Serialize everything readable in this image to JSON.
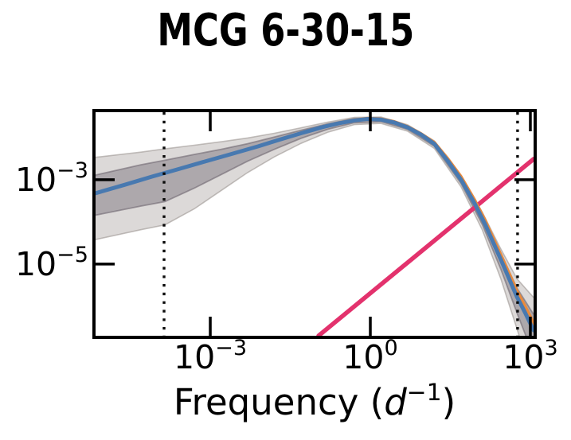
{
  "figure": {
    "title": "MCG 6-30-15",
    "background": "#ffffff",
    "text_color": "#000000"
  },
  "axes": {
    "xlabel": {
      "pre": "Frequency (",
      "var": "d",
      "sup": "−1",
      "post": ")"
    },
    "xscale": "log",
    "yscale": "log",
    "x_ticks": [
      {
        "base": "10",
        "exp": "−3",
        "log": -3
      },
      {
        "base": "10",
        "exp": "0",
        "log": 0
      },
      {
        "base": "10",
        "exp": "3",
        "log": 3
      }
    ],
    "y_ticks": [
      {
        "base": "10",
        "exp": "−3",
        "log": -3
      },
      {
        "base": "10",
        "exp": "−5",
        "log": -5
      }
    ]
  },
  "chart_data": {
    "type": "line",
    "title": "MCG 6-30-15",
    "xlabel": "Frequency (d^-1)",
    "ylabel": "",
    "xscale": "log",
    "yscale": "log",
    "xlim_log": [
      -5.15,
      3.06
    ],
    "ylim_log": [
      -6.7,
      -1.4
    ],
    "xlim": [
      7.1e-06,
      1150.0
    ],
    "ylim": [
      2e-07,
      0.04
    ],
    "grid": false,
    "legend": "none",
    "series": [
      {
        "name": "power-law-line",
        "role": "reference power law, slope ~ +1",
        "color": "#e3326d",
        "width": 5.5,
        "points_log": [
          [
            -0.97,
            -6.7
          ],
          [
            3.06,
            -2.51
          ]
        ]
      },
      {
        "name": "psd-model",
        "role": "best-fit model PSD",
        "color": "#e98a3c",
        "width": 4,
        "points_log": [
          [
            -5.15,
            -3.32
          ],
          [
            -4.6,
            -3.12
          ],
          [
            -4.1,
            -2.93
          ],
          [
            -3.6,
            -2.75
          ],
          [
            -3.1,
            -2.57
          ],
          [
            -2.6,
            -2.39
          ],
          [
            -2.1,
            -2.21
          ],
          [
            -1.7,
            -2.05
          ],
          [
            -1.3,
            -1.895
          ],
          [
            -0.9,
            -1.748
          ],
          [
            -0.6,
            -1.656
          ],
          [
            -0.3,
            -1.582
          ],
          [
            -0.05,
            -1.545
          ],
          [
            0.2,
            -1.558
          ],
          [
            0.45,
            -1.627
          ],
          [
            0.7,
            -1.744
          ],
          [
            0.95,
            -1.91
          ],
          [
            1.2,
            -2.12
          ],
          [
            1.45,
            -2.5
          ],
          [
            1.7,
            -2.93
          ],
          [
            1.95,
            -3.47
          ],
          [
            2.15,
            -3.96
          ],
          [
            2.45,
            -4.79
          ],
          [
            2.75,
            -5.64
          ],
          [
            2.9,
            -6.0
          ],
          [
            3.06,
            -6.4
          ]
        ]
      },
      {
        "name": "psd-median",
        "role": "posterior median PSD",
        "color": "#4879b0",
        "width": 5,
        "points_log": [
          [
            -5.15,
            -3.32
          ],
          [
            -4.6,
            -3.12
          ],
          [
            -4.1,
            -2.93
          ],
          [
            -3.6,
            -2.75
          ],
          [
            -3.1,
            -2.57
          ],
          [
            -2.6,
            -2.39
          ],
          [
            -2.1,
            -2.21
          ],
          [
            -1.7,
            -2.05
          ],
          [
            -1.3,
            -1.9
          ],
          [
            -0.9,
            -1.755
          ],
          [
            -0.6,
            -1.665
          ],
          [
            -0.3,
            -1.595
          ],
          [
            -0.05,
            -1.56
          ],
          [
            0.2,
            -1.575
          ],
          [
            0.45,
            -1.645
          ],
          [
            0.7,
            -1.76
          ],
          [
            0.95,
            -1.93
          ],
          [
            1.2,
            -2.15
          ],
          [
            1.45,
            -2.55
          ],
          [
            1.7,
            -3.0
          ],
          [
            1.95,
            -3.55
          ],
          [
            2.15,
            -4.05
          ],
          [
            2.45,
            -4.9
          ],
          [
            2.75,
            -5.78
          ],
          [
            2.9,
            -6.15
          ],
          [
            3.06,
            -6.57
          ]
        ]
      }
    ],
    "bands": [
      {
        "name": "outer-credible-band",
        "fill": "rgba(148,140,137,0.33)",
        "edge": "rgba(150,142,139,0.55)",
        "edge_width": 1.6,
        "points": [
          [
            -5.15,
            0.85,
            1.1
          ],
          [
            -4.3,
            0.66,
            1.18
          ],
          [
            -3.85,
            0.57,
            1.23
          ],
          [
            -3.3,
            0.46,
            1.05
          ],
          [
            -2.8,
            0.36,
            0.8
          ],
          [
            -2.3,
            0.27,
            0.55
          ],
          [
            -1.8,
            0.19,
            0.37
          ],
          [
            -1.3,
            0.13,
            0.24
          ],
          [
            -0.8,
            0.09,
            0.15
          ],
          [
            -0.3,
            0.07,
            0.1
          ],
          [
            0.2,
            0.06,
            0.09
          ],
          [
            0.7,
            0.06,
            0.09
          ],
          [
            1.2,
            0.07,
            0.11
          ],
          [
            1.7,
            0.1,
            0.17
          ],
          [
            2.1,
            0.15,
            0.27
          ],
          [
            2.45,
            0.25,
            0.46
          ],
          [
            2.75,
            0.43,
            0.76
          ],
          [
            3.06,
            0.78,
            1.18
          ]
        ]
      },
      {
        "name": "inner-credible-band",
        "fill": "rgba(97,89,101,0.38)",
        "edge": "rgba(110,102,112,0.60)",
        "edge_width": 1.8,
        "points": [
          [
            -5.15,
            0.43,
            0.52
          ],
          [
            -4.3,
            0.36,
            0.62
          ],
          [
            -3.85,
            0.3,
            0.68
          ],
          [
            -3.3,
            0.24,
            0.56
          ],
          [
            -2.8,
            0.18,
            0.42
          ],
          [
            -2.3,
            0.135,
            0.28
          ],
          [
            -1.8,
            0.1,
            0.19
          ],
          [
            -1.3,
            0.07,
            0.12
          ],
          [
            -0.8,
            0.05,
            0.08
          ],
          [
            -0.3,
            0.04,
            0.055
          ],
          [
            0.2,
            0.035,
            0.05
          ],
          [
            0.7,
            0.035,
            0.05
          ],
          [
            1.2,
            0.04,
            0.06
          ],
          [
            1.7,
            0.055,
            0.09
          ],
          [
            2.1,
            0.08,
            0.14
          ],
          [
            2.45,
            0.13,
            0.23
          ],
          [
            2.75,
            0.21,
            0.38
          ],
          [
            3.06,
            0.38,
            0.6
          ]
        ]
      }
    ],
    "vlines": {
      "name": "frequency-limit-markers",
      "color": "#0a0a0a",
      "style": "dotted",
      "width": 3.4,
      "values_log": [
        -3.866,
        2.76
      ],
      "values": [
        0.000136,
        575.0
      ]
    },
    "frame": {
      "color": "#000000",
      "width": 4
    },
    "ticks": {
      "color": "#000000",
      "width": 3.5,
      "length": 24,
      "direction": "in"
    }
  }
}
